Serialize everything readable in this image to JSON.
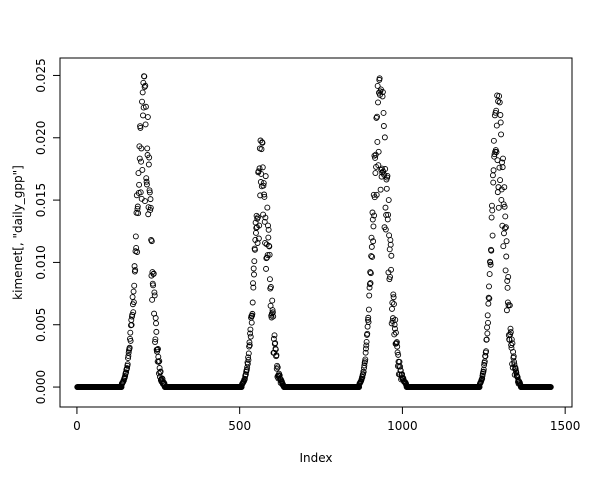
{
  "chart_data": {
    "type": "scatter",
    "marker": "open-circle",
    "marker_color": "#000000",
    "title": "",
    "xlabel": "Index",
    "ylabel": "kimenet[, \"daily_gpp\"]",
    "xlim": [
      -52,
      1521
    ],
    "ylim": [
      -0.0016,
      0.0264
    ],
    "grid": false,
    "legend": null,
    "x_ticks": [
      {
        "value": 0,
        "label": "0"
      },
      {
        "value": 500,
        "label": "500"
      },
      {
        "value": 1000,
        "label": "1000"
      },
      {
        "value": 1500,
        "label": "1500"
      }
    ],
    "y_ticks": [
      {
        "value": 0.0,
        "label": "0.000"
      },
      {
        "value": 0.005,
        "label": "0.005"
      },
      {
        "value": 0.01,
        "label": "0.010"
      },
      {
        "value": 0.015,
        "label": "0.015"
      },
      {
        "value": 0.02,
        "label": "0.020"
      },
      {
        "value": 0.025,
        "label": "0.025"
      }
    ],
    "index_start": 1,
    "index_end": 1456,
    "n_points": 1456,
    "zero_runs": [
      [
        1,
        137
      ],
      [
        270,
        506
      ],
      [
        636,
        867
      ],
      [
        1013,
        1237
      ],
      [
        1364,
        1456
      ]
    ],
    "seasons": [
      {
        "start": 138,
        "peak": 207,
        "end": 269,
        "max": 0.0254
      },
      {
        "start": 507,
        "peak": 567,
        "end": 635,
        "max": 0.0205
      },
      {
        "start": 868,
        "peak": 930,
        "end": 1012,
        "max": 0.0254
      },
      {
        "start": 1238,
        "peak": 1292,
        "end": 1363,
        "max": 0.0245
      }
    ],
    "noise_seed": 7
  }
}
